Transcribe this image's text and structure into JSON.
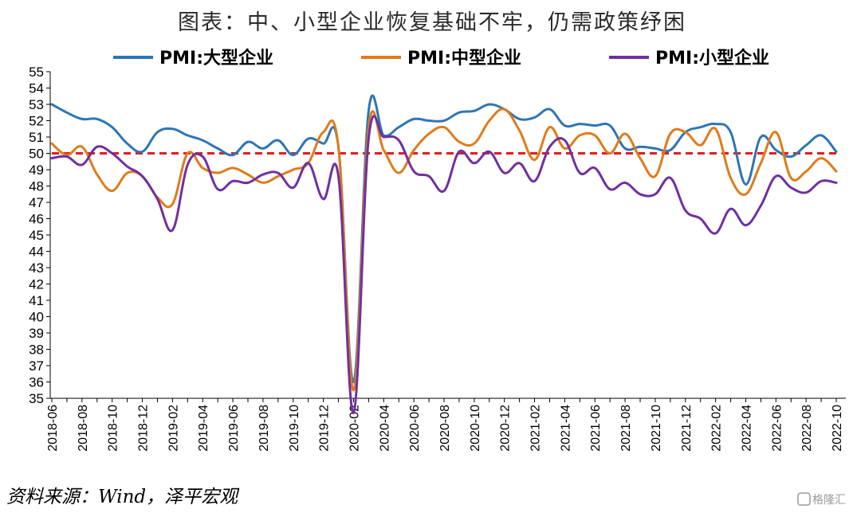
{
  "title": "图表：中、小型企业恢复基础不牢，仍需政策纾困",
  "source": "资料来源：Wind，泽平宏观",
  "watermark": "格隆汇",
  "colors": {
    "large": "#2E75B6",
    "medium": "#E07B1A",
    "small": "#7030A0",
    "reference": "#E31A1C",
    "axis": "#000000"
  },
  "chart_data": {
    "type": "line",
    "title": "图表：中、小型企业恢复基础不牢，仍需政策纾困",
    "xlabel": "",
    "ylabel": "",
    "ylim": [
      35,
      55
    ],
    "yticks": [
      35,
      36,
      37,
      38,
      39,
      40,
      41,
      42,
      43,
      44,
      45,
      46,
      47,
      48,
      49,
      50,
      51,
      52,
      53,
      54,
      55
    ],
    "x": [
      "2018-06",
      "2018-07",
      "2018-08",
      "2018-09",
      "2018-10",
      "2018-11",
      "2018-12",
      "2019-01",
      "2019-02",
      "2019-03",
      "2019-04",
      "2019-05",
      "2019-06",
      "2019-07",
      "2019-08",
      "2019-09",
      "2019-10",
      "2019-11",
      "2019-12",
      "2020-01",
      "2020-02",
      "2020-03",
      "2020-04",
      "2020-05",
      "2020-06",
      "2020-07",
      "2020-08",
      "2020-09",
      "2020-10",
      "2020-11",
      "2020-12",
      "2021-01",
      "2021-02",
      "2021-03",
      "2021-04",
      "2021-05",
      "2021-06",
      "2021-07",
      "2021-08",
      "2021-09",
      "2021-10",
      "2021-11",
      "2021-12",
      "2022-01",
      "2022-02",
      "2022-03",
      "2022-04",
      "2022-05",
      "2022-06",
      "2022-07",
      "2022-08",
      "2022-09",
      "2022-10"
    ],
    "xticks": [
      "2018-06",
      "2018-08",
      "2018-10",
      "2018-12",
      "2019-02",
      "2019-04",
      "2019-06",
      "2019-08",
      "2019-10",
      "2019-12",
      "2020-02",
      "2020-04",
      "2020-06",
      "2020-08",
      "2020-10",
      "2020-12",
      "2021-02",
      "2021-04",
      "2021-06",
      "2021-08",
      "2021-10",
      "2021-12",
      "2022-02",
      "2022-04",
      "2022-06",
      "2022-08",
      "2022-10"
    ],
    "legend_position": "top",
    "grid": false,
    "reference_line": 50,
    "series": [
      {
        "name": "PMI:大型企业",
        "color_key": "large",
        "values": [
          53.0,
          52.5,
          52.1,
          52.1,
          51.6,
          50.6,
          50.1,
          51.3,
          51.5,
          51.1,
          50.8,
          50.3,
          49.9,
          50.7,
          50.3,
          50.8,
          49.9,
          50.9,
          50.6,
          50.4,
          36.0,
          52.6,
          51.1,
          51.6,
          52.1,
          52.0,
          52.0,
          52.5,
          52.6,
          53.0,
          52.7,
          52.1,
          52.2,
          52.7,
          51.7,
          51.8,
          51.7,
          51.7,
          50.3,
          50.4,
          50.3,
          50.2,
          51.3,
          51.6,
          51.8,
          51.3,
          48.1,
          51.0,
          50.2,
          49.8,
          50.5,
          51.1,
          50.1
        ]
      },
      {
        "name": "PMI:中型企业",
        "color_key": "medium",
        "values": [
          50.6,
          49.9,
          50.4,
          48.7,
          47.7,
          48.8,
          48.6,
          47.3,
          46.9,
          50.0,
          49.1,
          48.8,
          49.1,
          48.7,
          48.2,
          48.6,
          49.0,
          49.4,
          51.3,
          50.4,
          35.5,
          51.6,
          50.2,
          48.8,
          50.2,
          51.2,
          51.6,
          50.7,
          50.6,
          52.0,
          52.7,
          51.4,
          49.6,
          51.6,
          50.3,
          51.1,
          51.1,
          50.0,
          51.2,
          49.7,
          48.6,
          51.2,
          51.3,
          50.5,
          51.5,
          48.5,
          47.5,
          49.4,
          51.3,
          48.5,
          48.9,
          49.7,
          48.9
        ]
      },
      {
        "name": "PMI:小型企业",
        "color_key": "small",
        "values": [
          49.7,
          49.8,
          49.3,
          50.4,
          50.0,
          49.2,
          48.6,
          47.2,
          45.3,
          49.3,
          49.8,
          47.8,
          48.3,
          48.2,
          48.7,
          48.8,
          47.9,
          49.4,
          47.2,
          48.6,
          34.1,
          50.9,
          51.0,
          50.8,
          48.9,
          48.6,
          47.7,
          50.1,
          49.4,
          50.1,
          48.8,
          49.4,
          48.3,
          50.4,
          50.8,
          48.8,
          49.1,
          47.8,
          48.2,
          47.5,
          47.5,
          48.5,
          46.5,
          46.0,
          45.1,
          46.6,
          45.6,
          46.8,
          48.6,
          47.9,
          47.6,
          48.3,
          48.2
        ]
      }
    ]
  }
}
